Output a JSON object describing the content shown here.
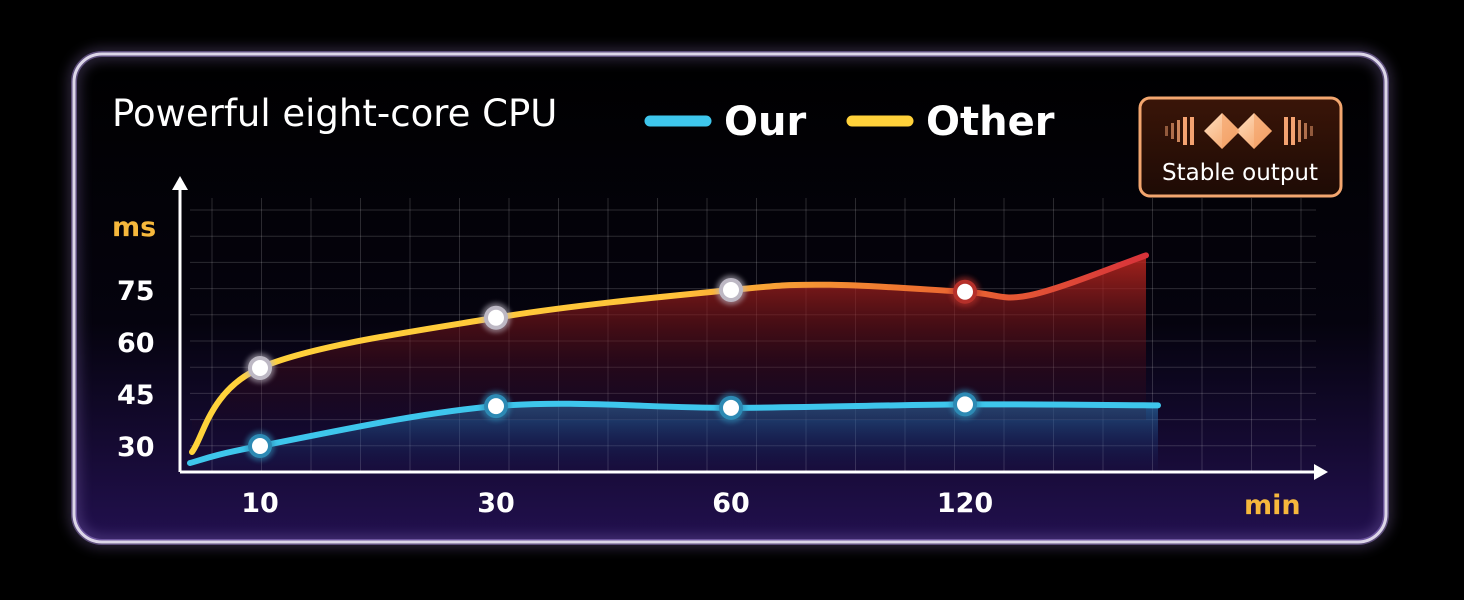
{
  "chart_data": {
    "type": "line",
    "title": "Powerful eight-core CPU",
    "xlabel": "min",
    "ylabel": "ms",
    "x_ticks": [
      "10",
      "30",
      "60",
      "120"
    ],
    "y_ticks": [
      "30",
      "45",
      "60",
      "75"
    ],
    "series": [
      {
        "name": "Our",
        "color": "#3ec6ec",
        "points": [
          {
            "x": "10",
            "y": 30
          },
          {
            "x": "30",
            "y": 41.5
          },
          {
            "x": "60",
            "y": 41
          },
          {
            "x": "120",
            "y": 42
          }
        ]
      },
      {
        "name": "Other",
        "color": "#ffd13a",
        "end_color": "#d8333a",
        "points": [
          {
            "x": "10",
            "y": 52.5
          },
          {
            "x": "30",
            "y": 67
          },
          {
            "x": "60",
            "y": 75
          },
          {
            "x": "120",
            "y": 74.5
          }
        ]
      }
    ],
    "grid": true,
    "legend": "top-center"
  },
  "badge": {
    "label": "Stable output",
    "color": "#f2a06a"
  },
  "colors": {
    "frame": "#d9d4e6",
    "accent": "#f6b83c"
  }
}
